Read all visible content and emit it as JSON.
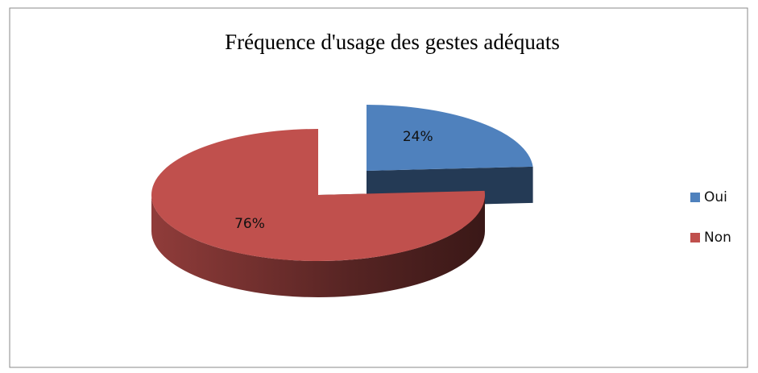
{
  "chart_data": {
    "type": "pie",
    "title": "Fréquence d'usage des gestes adéquats",
    "categories": [
      "Oui",
      "Non"
    ],
    "values": [
      24,
      76
    ],
    "value_labels": [
      "24%",
      "76%"
    ],
    "colors": [
      "#4f81bd",
      "#c0504d"
    ],
    "legend": "right"
  }
}
